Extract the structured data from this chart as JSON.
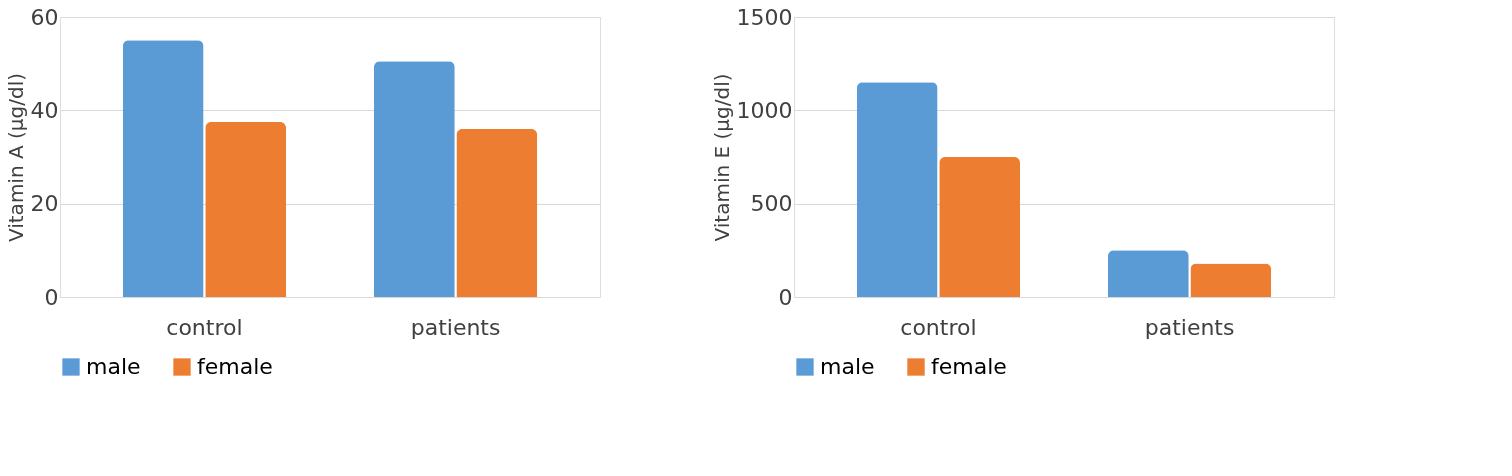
{
  "chart_data": [
    {
      "type": "bar",
      "ylabel": "Vitamin A (µg/dl)",
      "categories": [
        "control",
        "patients"
      ],
      "series": [
        {
          "name": "male",
          "color": "#5b9bd5",
          "values": [
            55,
            50.5
          ]
        },
        {
          "name": "female",
          "color": "#ed7d31",
          "values": [
            37.5,
            36
          ]
        }
      ],
      "ylim": [
        0,
        60
      ],
      "yticks": [
        0,
        20,
        40,
        60
      ],
      "grid": "y",
      "legend": "bottom"
    },
    {
      "type": "bar",
      "ylabel": "Vitamin E (µg/dl)",
      "categories": [
        "control",
        "patients"
      ],
      "series": [
        {
          "name": "male",
          "color": "#5b9bd5",
          "values": [
            1150,
            250
          ]
        },
        {
          "name": "female",
          "color": "#ed7d31",
          "values": [
            750,
            180
          ]
        }
      ],
      "ylim": [
        0,
        1500
      ],
      "yticks": [
        0,
        500,
        1000,
        1500
      ],
      "grid": "y",
      "legend": "bottom"
    }
  ]
}
